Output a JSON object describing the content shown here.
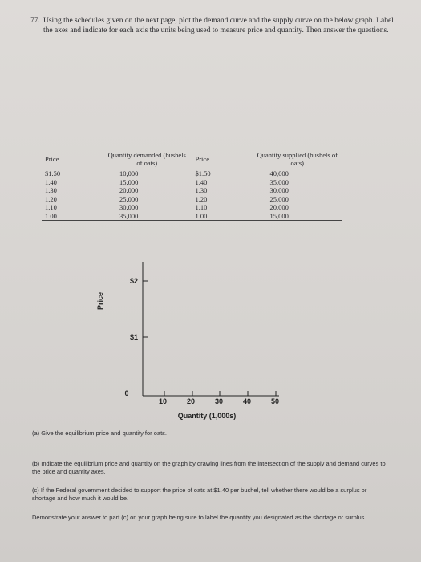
{
  "question": {
    "number": "77.",
    "text": "Using the schedules given on the next page, plot the demand curve and the supply curve on the below graph. Label the axes and indicate for each axis the units being used to measure price and quantity. Then answer the questions."
  },
  "table": {
    "headers": [
      "Price",
      "Quantity demanded (bushels of oats)",
      "Price",
      "Quantity supplied (bushels of oats)"
    ],
    "rows": [
      [
        "$1.50",
        "10,000",
        "$1.50",
        "40,000"
      ],
      [
        "1.40",
        "15,000",
        "1.40",
        "35,000"
      ],
      [
        "1.30",
        "20,000",
        "1.30",
        "30,000"
      ],
      [
        "1.20",
        "25,000",
        "1.20",
        "25,000"
      ],
      [
        "1.10",
        "30,000",
        "1.10",
        "20,000"
      ],
      [
        "1.00",
        "35,000",
        "1.00",
        "15,000"
      ]
    ]
  },
  "graph": {
    "y_label": "Price",
    "x_label": "Quantity (1,000s)",
    "y_ticks": [
      "$2",
      "$1"
    ],
    "origin": "0",
    "x_ticks": [
      "10",
      "20",
      "30",
      "40",
      "50"
    ]
  },
  "parts": [
    {
      "label": "(a)",
      "text": "Give the equilibrium price and quantity for oats."
    },
    {
      "label": "(b)",
      "text": "Indicate the equilibrium price and quantity on the graph by drawing lines from the intersection of the supply and demand curves to the price and quantity axes."
    },
    {
      "label": "(c)",
      "text": "If the Federal government decided to support the price of oats at $1.40 per bushel, tell whether there would be a surplus or shortage and how much it would be."
    }
  ],
  "closing": "Demonstrate your answer to part (c) on your graph being sure to label the quantity you designated as the shortage or surplus."
}
